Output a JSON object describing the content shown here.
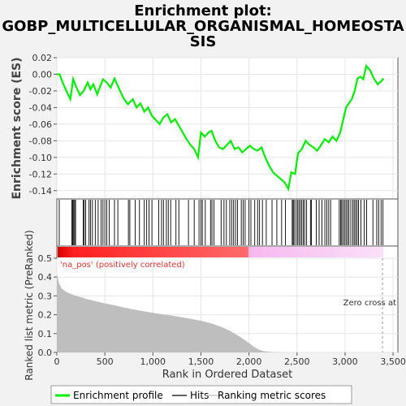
{
  "chart_data": {
    "type": "line",
    "title_line1": "Enrichment plot:",
    "title_line2": "GOBP_MULTICELLULAR_ORGANISMAL_HOMEOSTA",
    "title_line3": "SIS",
    "es_panel": {
      "ylabel": "Enrichment score (ES)",
      "ylim": [
        -0.15,
        0.02
      ],
      "yticks": [
        0.02,
        0.0,
        -0.02,
        -0.04,
        -0.06,
        -0.08,
        -0.1,
        -0.12,
        -0.14
      ],
      "ytick_labels": [
        "0.02",
        "0.00",
        "-0.02",
        "-0.04",
        "-0.06",
        "-0.08",
        "-0.10",
        "-0.12",
        "-0.14"
      ],
      "curve": {
        "x": [
          0,
          30,
          60,
          100,
          140,
          170,
          200,
          240,
          280,
          320,
          350,
          380,
          420,
          450,
          480,
          520,
          560,
          600,
          650,
          700,
          740,
          790,
          830,
          870,
          910,
          950,
          990,
          1030,
          1070,
          1110,
          1150,
          1190,
          1230,
          1270,
          1310,
          1350,
          1390,
          1430,
          1470,
          1500,
          1540,
          1580,
          1610,
          1650,
          1690,
          1730,
          1770,
          1810,
          1850,
          1890,
          1930,
          1970,
          2010,
          2050,
          2090,
          2130,
          2170,
          2210,
          2250,
          2290,
          2330,
          2370,
          2410,
          2440,
          2480,
          2510,
          2550,
          2590,
          2630,
          2670,
          2710,
          2750,
          2790,
          2830,
          2870,
          2910,
          2950,
          2980,
          3010,
          3040,
          3070,
          3100,
          3130,
          3160,
          3190,
          3220,
          3260,
          3300,
          3340,
          3380,
          3400
        ],
        "y": [
          0.0,
          0.0,
          -0.01,
          -0.02,
          -0.03,
          -0.006,
          -0.015,
          -0.025,
          -0.02,
          -0.01,
          -0.018,
          -0.012,
          -0.024,
          -0.015,
          -0.006,
          -0.01,
          -0.016,
          -0.005,
          -0.018,
          -0.03,
          -0.036,
          -0.03,
          -0.04,
          -0.035,
          -0.045,
          -0.04,
          -0.05,
          -0.055,
          -0.06,
          -0.052,
          -0.048,
          -0.058,
          -0.054,
          -0.062,
          -0.07,
          -0.078,
          -0.085,
          -0.09,
          -0.1,
          -0.07,
          -0.075,
          -0.07,
          -0.068,
          -0.08,
          -0.088,
          -0.09,
          -0.085,
          -0.08,
          -0.09,
          -0.088,
          -0.094,
          -0.09,
          -0.086,
          -0.09,
          -0.092,
          -0.088,
          -0.1,
          -0.11,
          -0.118,
          -0.122,
          -0.126,
          -0.13,
          -0.138,
          -0.118,
          -0.12,
          -0.095,
          -0.09,
          -0.08,
          -0.085,
          -0.088,
          -0.092,
          -0.085,
          -0.078,
          -0.082,
          -0.075,
          -0.08,
          -0.07,
          -0.055,
          -0.04,
          -0.035,
          -0.03,
          -0.02,
          -0.005,
          -0.003,
          -0.006,
          0.01,
          0.005,
          -0.005,
          -0.012,
          -0.008,
          -0.005
        ]
      },
      "color": "#00ee00"
    },
    "hits_panel": {
      "hit_positions": [
        25,
        155,
        165,
        175,
        185,
        195,
        275,
        285,
        300,
        335,
        350,
        370,
        400,
        430,
        460,
        480,
        500,
        520,
        545,
        600,
        635,
        745,
        760,
        815,
        860,
        910,
        935,
        960,
        990,
        1060,
        1090,
        1110,
        1140,
        1160,
        1185,
        1240,
        1270,
        1370,
        1430,
        1480,
        1500,
        1515,
        1545,
        1600,
        1615,
        1635,
        1710,
        1740,
        1765,
        1800,
        1820,
        1840,
        1860,
        1880,
        1920,
        1940,
        1960,
        2000,
        2020,
        2060,
        2090,
        2110,
        2140,
        2180,
        2240,
        2290,
        2340,
        2380,
        2450,
        2460,
        2470,
        2490,
        2505,
        2520,
        2535,
        2550,
        2565,
        2580,
        2600,
        2640,
        2650,
        2700,
        2730,
        2760,
        2790,
        2810,
        2830,
        2850,
        2940,
        2955,
        2965,
        2980,
        2995,
        3010,
        3025,
        3040,
        3060,
        3080,
        3095,
        3110,
        3125,
        3140,
        3165,
        3200,
        3225,
        3290,
        3330,
        3350,
        3375,
        3395
      ]
    },
    "ranked_panel": {
      "ylabel": "Ranked list metric (PreRanked)",
      "ylim": [
        0.0,
        0.5
      ],
      "yticks": [
        0.0,
        0.1,
        0.2,
        0.3,
        0.4,
        0.5
      ],
      "ytick_labels": [
        "0.0",
        "0.1",
        "0.2",
        "0.3",
        "0.4",
        "0.5"
      ],
      "metric_x": [
        0,
        20,
        50,
        100,
        200,
        300,
        400,
        500,
        600,
        700,
        800,
        900,
        1000,
        1100,
        1200,
        1300,
        1400,
        1500,
        1600,
        1700,
        1800,
        1900,
        2000,
        2050,
        2100,
        2150,
        2200,
        2300,
        2500,
        3000,
        3400
      ],
      "metric_y": [
        0.42,
        0.37,
        0.34,
        0.32,
        0.3,
        0.285,
        0.272,
        0.26,
        0.25,
        0.238,
        0.228,
        0.219,
        0.21,
        0.202,
        0.195,
        0.186,
        0.178,
        0.168,
        0.155,
        0.138,
        0.115,
        0.085,
        0.05,
        0.03,
        0.015,
        0.007,
        0.003,
        0.001,
        0.0,
        0.0,
        0.0
      ],
      "fill_color": "#bebebe",
      "zero_cross_rank": 3390,
      "zero_cross_label": "Zero cross at",
      "pos_label": "'na_pos' (positively correlated)",
      "pos_label_color": "#e83030"
    },
    "xaxis": {
      "xlabel": "Rank in Ordered Dataset",
      "xlim": [
        0,
        3550
      ],
      "xticks": [
        0,
        500,
        1000,
        1500,
        2000,
        2500,
        3000,
        3500
      ],
      "xtick_labels": [
        "0",
        "500",
        "1,000",
        "1,500",
        "2,000",
        "2,500",
        "3,000",
        "3,500"
      ]
    },
    "legend": {
      "entries": [
        {
          "label": "Enrichment profile",
          "color": "#00ee00"
        },
        {
          "label": "Hits",
          "color": "#000000"
        },
        {
          "label": "Ranking metric scores",
          "color": "#bebebe"
        }
      ],
      "placement": "bottom"
    },
    "gradient": {
      "positive_color": "#e00000",
      "negative_color": "#f8c8f0",
      "split_rank": 2000,
      "end_rank": 3400
    }
  }
}
